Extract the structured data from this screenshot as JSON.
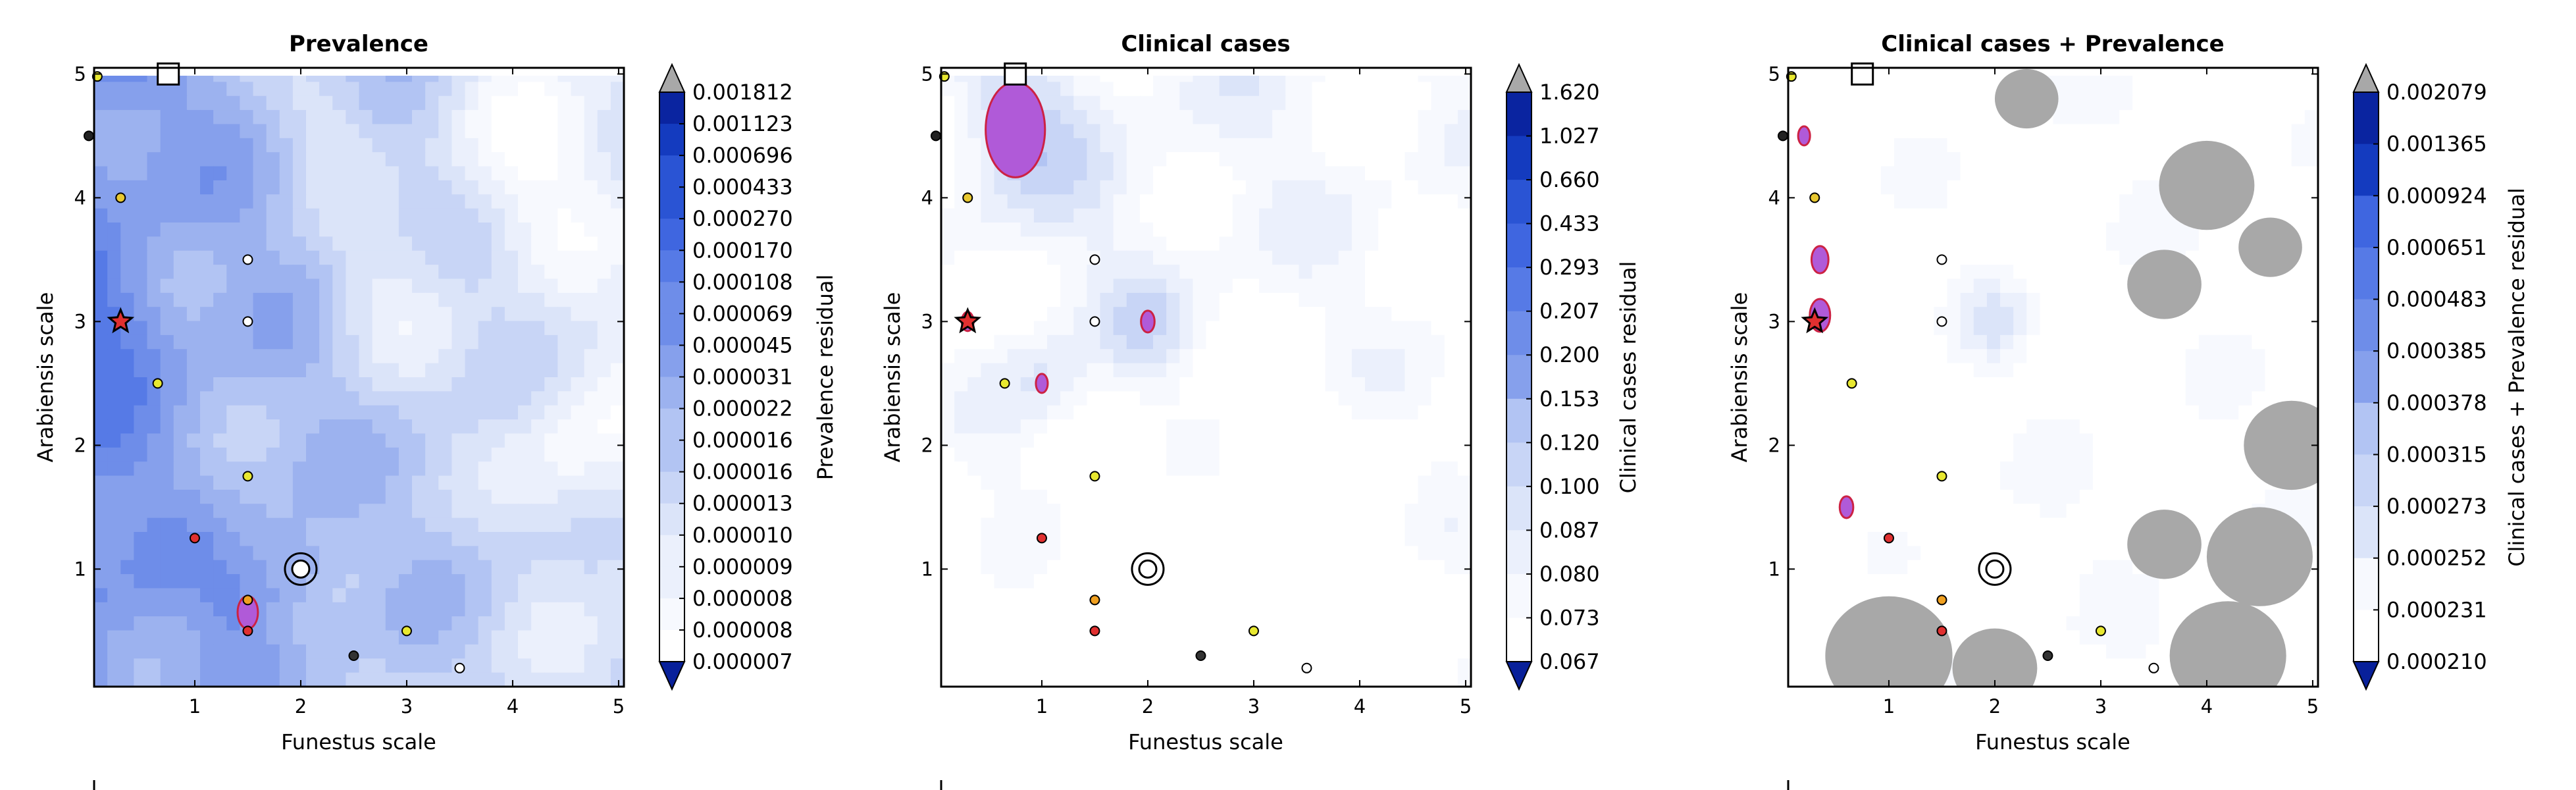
{
  "colors": {
    "over": "#a8a8a8",
    "under": "#08209a",
    "ramp": [
      "#0a24a0",
      "#143bbf",
      "#2a54d4",
      "#3f66e0",
      "#567ae6",
      "#6e8de9",
      "#86a0ec",
      "#9cb2ef",
      "#b2c4f3",
      "#c8d5f6",
      "#dbe4f9",
      "#ebf0fc",
      "#f7f9fe",
      "#ffffff"
    ],
    "residual_highlight": "#b05ad8",
    "residual_highlight_edge": "#cc2244"
  },
  "markers": {
    "square": {
      "x": 0.75,
      "y": 5.0
    },
    "star": {
      "x": 0.3,
      "y": 3.0
    },
    "ringed_point": {
      "x": 2.0,
      "y": 1.0
    },
    "points": [
      {
        "x": 0.08,
        "y": 4.98,
        "color": "#e8e830"
      },
      {
        "x": 0.0,
        "y": 4.5,
        "color": "#222222"
      },
      {
        "x": 0.3,
        "y": 4.0,
        "color": "#e8c830"
      },
      {
        "x": 1.5,
        "y": 3.5,
        "color": "#ffffff"
      },
      {
        "x": 1.5,
        "y": 3.0,
        "color": "#ffffff"
      },
      {
        "x": 0.65,
        "y": 2.5,
        "color": "#e8e830"
      },
      {
        "x": 1.5,
        "y": 1.75,
        "color": "#e8e830"
      },
      {
        "x": 1.0,
        "y": 1.25,
        "color": "#e03030"
      },
      {
        "x": 1.5,
        "y": 0.75,
        "color": "#f0a020"
      },
      {
        "x": 1.5,
        "y": 0.5,
        "color": "#e03030"
      },
      {
        "x": 2.5,
        "y": 0.3,
        "color": "#333333"
      },
      {
        "x": 3.0,
        "y": 0.5,
        "color": "#e8e830"
      },
      {
        "x": 3.5,
        "y": 0.2,
        "color": "#ffffff"
      }
    ]
  },
  "chart_data": [
    {
      "type": "heatmap",
      "title": "Prevalence",
      "xlabel": "Funestus scale",
      "ylabel": "Arabiensis scale",
      "xlim": [
        0.05,
        5.05
      ],
      "ylim": [
        0.05,
        5.05
      ],
      "xticks": [
        "1",
        "2",
        "3",
        "4",
        "5"
      ],
      "yticks": [
        "1",
        "2",
        "3",
        "4",
        "5"
      ],
      "colorbar_label": "Prevalence residual",
      "colorbar_levels": [
        "0.001812",
        "0.001123",
        "0.000696",
        "0.000433",
        "0.000270",
        "0.000170",
        "0.000108",
        "0.000069",
        "0.000045",
        "0.000031",
        "0.000022",
        "0.000016",
        "0.000016",
        "0.000013",
        "0.000010",
        "0.000009",
        "0.000008",
        "0.000008",
        "0.000007"
      ],
      "colorbar_extend": "both",
      "field": {
        "base": 6.5,
        "left_bonus": 2.5,
        "right_light": 3.5,
        "features": [
          {
            "x": 2.0,
            "y": 1.0,
            "r": 0.35,
            "v": -2
          },
          {
            "x": 4.2,
            "y": 4.3,
            "r": 0.9,
            "v": 3
          },
          {
            "x": 4.6,
            "y": 2.0,
            "r": 0.7,
            "v": 2.5
          },
          {
            "x": 1.5,
            "y": 0.7,
            "r": 0.4,
            "v": -2
          },
          {
            "x": 0.3,
            "y": 3.0,
            "r": 0.5,
            "v": -1.5
          },
          {
            "x": 2.8,
            "y": 3.2,
            "r": 0.6,
            "v": 2
          },
          {
            "x": 3.6,
            "y": 1.2,
            "r": 0.6,
            "v": -1
          },
          {
            "x": 2.3,
            "y": 4.6,
            "r": 0.5,
            "v": 2
          }
        ]
      }
    },
    {
      "type": "heatmap",
      "title": "Clinical cases",
      "xlabel": "Funestus scale",
      "ylabel": "Arabiensis scale",
      "xlim": [
        0.05,
        5.05
      ],
      "ylim": [
        0.05,
        5.05
      ],
      "xticks": [
        "1",
        "2",
        "3",
        "4",
        "5"
      ],
      "yticks": [
        "1",
        "2",
        "3",
        "4",
        "5"
      ],
      "colorbar_label": "Clinical cases residual",
      "colorbar_levels": [
        "1.620",
        "1.027",
        "0.660",
        "0.433",
        "0.293",
        "0.207",
        "0.200",
        "0.153",
        "0.120",
        "0.100",
        "0.087",
        "0.080",
        "0.073",
        "0.067"
      ],
      "colorbar_extend": "both",
      "field": {
        "base": 11,
        "left_bonus": -4,
        "right_light": 1.5,
        "features": [
          {
            "x": 0.7,
            "y": 4.5,
            "r": 0.7,
            "v": -3
          },
          {
            "x": 2.0,
            "y": 3.0,
            "r": 0.4,
            "v": -2
          },
          {
            "x": 2.0,
            "y": 1.0,
            "r": 0.3,
            "v": -1
          },
          {
            "x": 1.0,
            "y": 2.5,
            "r": 0.4,
            "v": -2
          },
          {
            "x": 3.0,
            "y": 1.0,
            "r": 1.5,
            "v": 3
          },
          {
            "x": 1.5,
            "y": 0.5,
            "r": 0.8,
            "v": 3
          }
        ]
      }
    },
    {
      "type": "heatmap",
      "title": "Clinical cases + Prevalence",
      "xlabel": "Funestus scale",
      "ylabel": "Arabiensis scale",
      "xlim": [
        0.05,
        5.05
      ],
      "ylim": [
        0.05,
        5.05
      ],
      "xticks": [
        "1",
        "2",
        "3",
        "4",
        "5"
      ],
      "yticks": [
        "1",
        "2",
        "3",
        "4",
        "5"
      ],
      "colorbar_label": "Clinical cases + Prevalence residual",
      "colorbar_levels": [
        "0.002079",
        "0.001365",
        "0.000924",
        "0.000651",
        "0.000483",
        "0.000385",
        "0.000378",
        "0.000315",
        "0.000273",
        "0.000252",
        "0.000231",
        "0.000210"
      ],
      "colorbar_extend": "both",
      "field": {
        "base": 12.5,
        "left_bonus": -6,
        "right_light": 1,
        "features": [
          {
            "x": 0.4,
            "y": 3.4,
            "r": 0.5,
            "v": -2
          },
          {
            "x": 2.0,
            "y": 3.0,
            "r": 0.3,
            "v": -2
          },
          {
            "x": 2.0,
            "y": 1.0,
            "r": 0.3,
            "v": -2
          }
        ],
        "grey_blobs": [
          {
            "x": 2.3,
            "y": 4.8,
            "r": 0.3
          },
          {
            "x": 4.0,
            "y": 4.1,
            "r": 0.45
          },
          {
            "x": 3.6,
            "y": 3.3,
            "r": 0.35
          },
          {
            "x": 4.6,
            "y": 3.6,
            "r": 0.3
          },
          {
            "x": 4.8,
            "y": 2.0,
            "r": 0.45
          },
          {
            "x": 3.6,
            "y": 1.2,
            "r": 0.35
          },
          {
            "x": 4.5,
            "y": 1.1,
            "r": 0.5
          },
          {
            "x": 1.0,
            "y": 0.3,
            "r": 0.6
          },
          {
            "x": 2.0,
            "y": 0.2,
            "r": 0.4
          },
          {
            "x": 4.2,
            "y": 0.3,
            "r": 0.55
          }
        ]
      }
    }
  ]
}
